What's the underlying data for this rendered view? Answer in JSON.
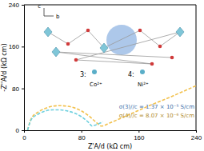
{
  "chart_data": {
    "type": "line",
    "x_label": "Z'A/d (kΩ cm)",
    "y_label": "-Z''A/d (kΩ cm)",
    "xlim": [
      0,
      240
    ],
    "xticks": [
      0,
      80,
      160,
      240
    ],
    "ylim": [
      0,
      240
    ],
    "yticks": [
      0,
      80,
      160,
      240
    ],
    "grid": false,
    "series": [
      {
        "color": "#f2c14e",
        "line_style": "dashed",
        "x": [
          5,
          10,
          20,
          30,
          40,
          50,
          60,
          70,
          80,
          90,
          100,
          108,
          120,
          140,
          160,
          180,
          200,
          220,
          240
        ],
        "values": [
          0,
          22,
          35,
          42,
          46,
          47,
          46,
          43,
          37,
          28,
          16,
          8,
          14,
          26,
          38,
          50,
          61,
          73,
          85
        ]
      },
      {
        "color": "#6fd0de",
        "line_style": "dashed",
        "x": [
          5,
          10,
          20,
          30,
          40,
          50,
          60,
          70,
          80,
          90,
          95,
          100,
          105,
          110
        ],
        "values": [
          0,
          20,
          31,
          37,
          39,
          39,
          37,
          33,
          26,
          15,
          8,
          10,
          13,
          16
        ]
      }
    ],
    "annotations": [
      "σ(3)//c = 1.37 × 10⁻⁵ S/cm",
      "σ(4)//c = 8.07 × 10⁻⁶ S/cm",
      "3:",
      "Co²⁺",
      "4:",
      "Ni²⁺",
      "c",
      "b"
    ]
  }
}
